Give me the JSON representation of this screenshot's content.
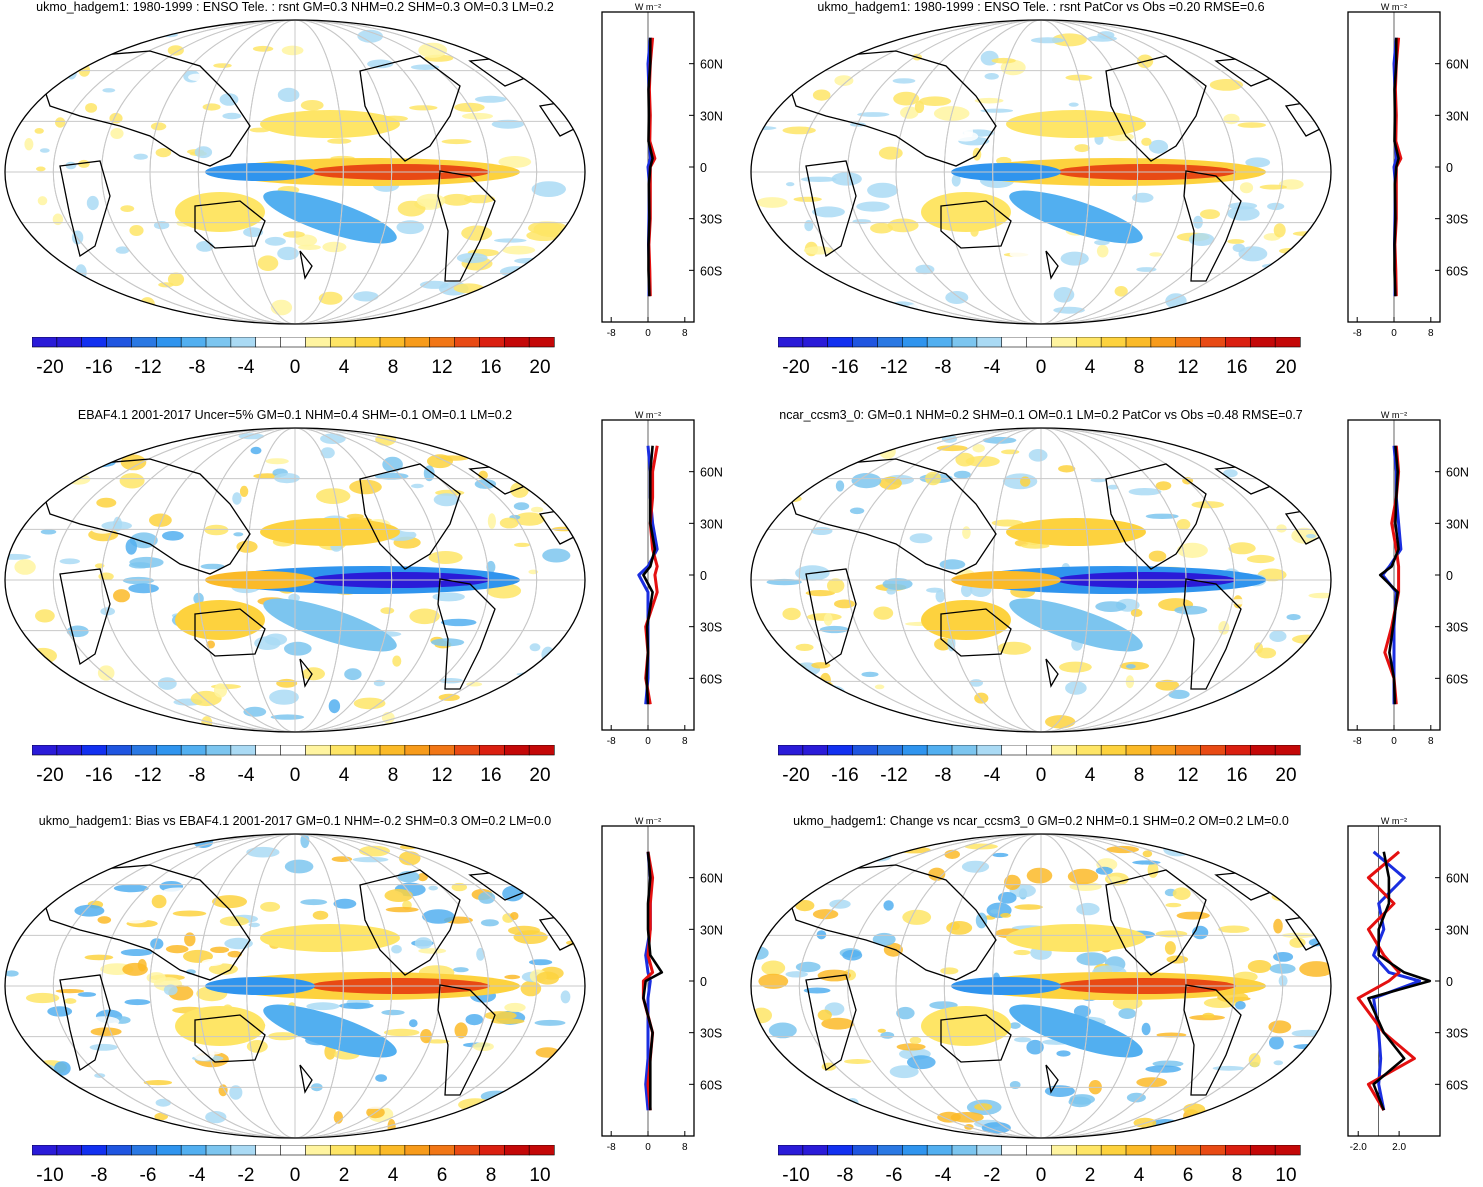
{
  "colors": {
    "scale": [
      "#2a1bd8",
      "#1230f0",
      "#1f55e0",
      "#2a78e3",
      "#2f94ee",
      "#52aff0",
      "#7cc5ef",
      "#aadaf4",
      "#ffffff",
      "#ffffff",
      "#fff4a0",
      "#fee566",
      "#fdd23e",
      "#fbba28",
      "#f79b1b",
      "#f17616",
      "#e84a14",
      "#da1f10",
      "#c40808"
    ],
    "model_line": "#e41010",
    "obs_line": "#1a2ee0",
    "diff_line": "#000000",
    "coast": "#000000",
    "grid": "#c8c8c8"
  },
  "zonal_axis": {
    "unit_label": "W m⁻²",
    "lat_ticks": [
      "60N",
      "30N",
      "0",
      "30S",
      "60S"
    ]
  },
  "panels": [
    {
      "id": "top-left",
      "title": "ukmo_hadgem1: 1980-1999 : ENSO Tele. : rsnt GM=0.3 NHM=0.2 SHM=0.3 OM=0.3 LM=0.2",
      "colorbar_labels": [
        "-20",
        "-16",
        "-12",
        "-8",
        "-4",
        "0",
        "4",
        "8",
        "12",
        "16",
        "20"
      ],
      "zonal_ticks": [
        "-8",
        "0",
        "8"
      ],
      "center": "pacific-warm",
      "strength": 0.55
    },
    {
      "id": "top-right",
      "title": "ukmo_hadgem1: 1980-1999 : ENSO Tele. : rsnt PatCor vs Obs =0.20 RMSE=0.6",
      "colorbar_labels": [
        "-20",
        "-16",
        "-12",
        "-8",
        "-4",
        "0",
        "4",
        "8",
        "12",
        "16",
        "20"
      ],
      "zonal_ticks": [
        "-8",
        "0",
        "8"
      ],
      "center": "pacific-warm",
      "strength": 0.55
    },
    {
      "id": "middle-left",
      "title": "EBAF4.1 2001-2017 Uncer=5% GM=0.1 NHM=0.4 SHM=-0.1 OM=0.1 LM=0.2",
      "colorbar_labels": [
        "-20",
        "-16",
        "-12",
        "-8",
        "-4",
        "0",
        "4",
        "8",
        "12",
        "16",
        "20"
      ],
      "zonal_ticks": [
        "-8",
        "0",
        "8"
      ],
      "center": "pacific-cold",
      "strength": 0.8
    },
    {
      "id": "middle-right",
      "title": "ncar_ccsm3_0: GM=0.1 NHM=0.2 SHM=0.1 OM=0.1 LM=0.2 PatCor vs Obs =0.48 RMSE=0.7",
      "colorbar_labels": [
        "-20",
        "-16",
        "-12",
        "-8",
        "-4",
        "0",
        "4",
        "8",
        "12",
        "16",
        "20"
      ],
      "zonal_ticks": [
        "-8",
        "0",
        "8"
      ],
      "center": "pacific-cold",
      "strength": 0.7
    },
    {
      "id": "bottom-left",
      "title": "ukmo_hadgem1: Bias vs EBAF4.1 2001-2017 GM=0.1 NHM=-0.2 SHM=0.3 OM=0.2 LM=0.0",
      "colorbar_labels": [
        "-10",
        "-8",
        "-6",
        "-4",
        "-2",
        "0",
        "2",
        "4",
        "6",
        "8",
        "10"
      ],
      "zonal_ticks": [
        "-8",
        "0",
        "8"
      ],
      "center": "pacific-warm",
      "strength": 1.0
    },
    {
      "id": "bottom-right",
      "title": "ukmo_hadgem1: Change vs ncar_ccsm3_0 GM=0.2 NHM=0.1 SHM=0.2 OM=0.2 LM=0.0",
      "colorbar_labels": [
        "-10",
        "-8",
        "-6",
        "-4",
        "-2",
        "0",
        "2",
        "4",
        "6",
        "8",
        "10"
      ],
      "zonal_ticks": [
        "-2.0",
        "2.0"
      ],
      "center": "pacific-warm",
      "strength": 1.0
    }
  ],
  "chart_data": [
    {
      "type": "heatmap",
      "title": "ukmo_hadgem1: 1980-1999 : ENSO Tele. : rsnt GM=0.3 NHM=0.2 SHM=0.3 OM=0.3 LM=0.2",
      "levels": [
        -20,
        -18,
        -16,
        -14,
        -12,
        -10,
        -8,
        -6,
        -4,
        -2,
        0,
        2,
        4,
        6,
        8,
        10,
        12,
        14,
        16,
        18,
        20
      ],
      "zonal_mean": {
        "xlim": [
          -10,
          10
        ],
        "lat": [
          75,
          60,
          45,
          30,
          15,
          5,
          0,
          -10,
          -30,
          -45,
          -60,
          -75
        ],
        "model": [
          1,
          0.5,
          0.3,
          0.5,
          0.4,
          1.5,
          0.5,
          0.5,
          0.5,
          0.2,
          0.4,
          0.5
        ],
        "obs": [
          0.5,
          0,
          0.2,
          0.3,
          0.3,
          0.5,
          0,
          0.3,
          0.2,
          0.1,
          0.3,
          0.2
        ],
        "diff": [
          0.5,
          0.5,
          0.1,
          0.2,
          0.1,
          1,
          0.5,
          0.2,
          0.3,
          0.1,
          0.1,
          0.3
        ]
      }
    },
    {
      "type": "heatmap",
      "title": "ukmo_hadgem1: 1980-1999 : ENSO Tele. : rsnt PatCor vs Obs =0.20 RMSE=0.6",
      "levels": [
        -20,
        -18,
        -16,
        -14,
        -12,
        -10,
        -8,
        -6,
        -4,
        -2,
        0,
        2,
        4,
        6,
        8,
        10,
        12,
        14,
        16,
        18,
        20
      ],
      "zonal_mean": {
        "xlim": [
          -10,
          10
        ],
        "lat": [
          75,
          60,
          45,
          30,
          15,
          5,
          0,
          -10,
          -30,
          -45,
          -60,
          -75
        ],
        "model": [
          1,
          0.5,
          0.3,
          0.5,
          0.4,
          1.5,
          0.5,
          0.5,
          0.5,
          0.2,
          0.4,
          0.5
        ],
        "obs": [
          0.5,
          0,
          0.2,
          0.3,
          0.3,
          0.5,
          0,
          0.3,
          0.2,
          0.1,
          0.3,
          0.2
        ],
        "diff": [
          0.5,
          0.5,
          0.1,
          0.2,
          0.1,
          1,
          0.5,
          0.2,
          0.3,
          0.1,
          0.1,
          0.3
        ]
      }
    },
    {
      "type": "heatmap",
      "title": "EBAF4.1 2001-2017 Uncer=5% GM=0.1 NHM=0.4 SHM=-0.1 OM=0.1 LM=0.2",
      "levels": [
        -20,
        -18,
        -16,
        -14,
        -12,
        -10,
        -8,
        -6,
        -4,
        -2,
        0,
        2,
        4,
        6,
        8,
        10,
        12,
        14,
        16,
        18,
        20
      ],
      "zonal_mean": {
        "xlim": [
          -10,
          10
        ],
        "lat": [
          75,
          60,
          45,
          30,
          15,
          5,
          0,
          -10,
          -30,
          -45,
          -60,
          -75
        ],
        "model": [
          2,
          1,
          1,
          0.5,
          1,
          2,
          1.5,
          2,
          -0.5,
          0,
          -0.5,
          0.5
        ],
        "obs": [
          0,
          0.5,
          0.5,
          1,
          2,
          0,
          -2,
          0,
          0,
          0,
          0,
          -0.5
        ],
        "diff": [
          1,
          0.5,
          0.5,
          0.5,
          1.5,
          0.5,
          -1,
          1,
          -0.2,
          0,
          -0.3,
          0
        ]
      }
    },
    {
      "type": "heatmap",
      "title": "ncar_ccsm3_0: GM=0.1 NHM=0.2 SHM=0.1 OM=0.1 LM=0.2 PatCor vs Obs =0.48 RMSE=0.7",
      "levels": [
        -20,
        -18,
        -16,
        -14,
        -12,
        -10,
        -8,
        -6,
        -4,
        -2,
        0,
        2,
        4,
        6,
        8,
        10,
        12,
        14,
        16,
        18,
        20
      ],
      "zonal_mean": {
        "xlim": [
          -10,
          10
        ],
        "lat": [
          75,
          60,
          45,
          30,
          15,
          5,
          0,
          -10,
          -30,
          -45,
          -60,
          -75
        ],
        "model": [
          0.5,
          1,
          0.5,
          -0.5,
          0.5,
          1,
          1,
          1,
          -0.5,
          -2,
          0,
          0.5
        ],
        "obs": [
          0,
          0.5,
          0.5,
          1,
          1.5,
          -1,
          -2.5,
          0.5,
          0,
          0,
          0,
          0
        ],
        "diff": [
          0.3,
          0.8,
          0.5,
          0.3,
          1,
          -0.5,
          -3,
          0.8,
          -0.2,
          -1,
          0,
          0.2
        ]
      }
    },
    {
      "type": "heatmap",
      "title": "ukmo_hadgem1: Bias vs EBAF4.1 2001-2017 GM=0.1 NHM=-0.2 SHM=0.3 OM=0.2 LM=0.0",
      "levels": [
        -10,
        -9,
        -8,
        -7,
        -6,
        -5,
        -4,
        -3,
        -2,
        -1,
        0,
        1,
        2,
        3,
        4,
        5,
        6,
        7,
        8,
        9,
        10
      ],
      "zonal_mean": {
        "xlim": [
          -10,
          10
        ],
        "lat": [
          75,
          60,
          45,
          30,
          15,
          5,
          0,
          -10,
          -30,
          -45,
          -60,
          -75
        ],
        "model": [
          0,
          1,
          0.5,
          0.5,
          0,
          1,
          -1,
          -1,
          1,
          0.5,
          0,
          0.5
        ],
        "obs": [
          0,
          0.5,
          0.5,
          0.5,
          -0.5,
          0,
          0.5,
          0,
          0,
          0,
          -0.5,
          0
        ],
        "diff": [
          0,
          0.5,
          0,
          0,
          0.5,
          3,
          -0.5,
          -1,
          1,
          0.5,
          0.5,
          0.5
        ]
      }
    },
    {
      "type": "heatmap",
      "title": "ukmo_hadgem1: Change vs ncar_ccsm3_0 GM=0.2 NHM=0.1 SHM=0.2 OM=0.2 LM=0.0",
      "levels": [
        -10,
        -9,
        -8,
        -7,
        -6,
        -5,
        -4,
        -3,
        -2,
        -1,
        0,
        1,
        2,
        3,
        4,
        5,
        6,
        7,
        8,
        9,
        10
      ],
      "zonal_mean": {
        "xlim": [
          -3,
          6
        ],
        "lat": [
          75,
          60,
          45,
          30,
          15,
          5,
          0,
          -10,
          -30,
          -45,
          -60,
          -75
        ],
        "model": [
          2,
          -1,
          1.5,
          -1,
          0.5,
          2,
          1,
          -2,
          0.5,
          3.5,
          -1,
          0.5
        ],
        "obs": [
          -0.5,
          2.5,
          0,
          0.5,
          -0.5,
          1,
          4,
          -0.5,
          0,
          0.2,
          0,
          0.5
        ],
        "diff": [
          0.5,
          1,
          1,
          0,
          0,
          2.5,
          5,
          -1,
          0.5,
          2.5,
          -0.5,
          0.5
        ]
      }
    }
  ]
}
